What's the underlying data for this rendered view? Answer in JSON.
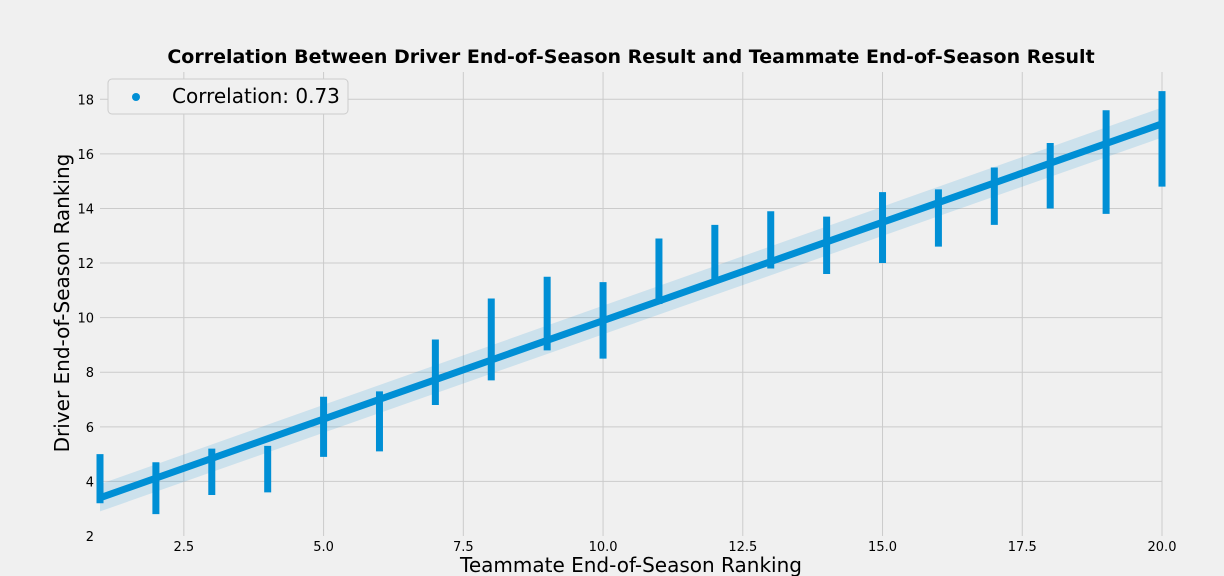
{
  "chart_data": {
    "type": "scatter",
    "title": "Correlation Between Driver End-of-Season Result and Teammate End-of-Season Result",
    "xlabel": "Teammate End-of-Season Ranking",
    "ylabel": "Driver End-of-Season Ranking",
    "xlim": [
      1,
      20
    ],
    "ylim": [
      2,
      19
    ],
    "x_ticks": [
      "2.5",
      "5.0",
      "7.5",
      "10.0",
      "12.5",
      "15.0",
      "17.5",
      "20.0"
    ],
    "x_tick_values": [
      2.5,
      5.0,
      7.5,
      10.0,
      12.5,
      15.0,
      17.5,
      20.0
    ],
    "y_ticks": [
      "2",
      "4",
      "6",
      "8",
      "10",
      "12",
      "14",
      "16",
      "18"
    ],
    "y_tick_values": [
      2,
      4,
      6,
      8,
      10,
      12,
      14,
      16,
      18
    ],
    "grid": true,
    "legend": {
      "label": "Correlation: 0.73",
      "placement": "top-left"
    },
    "color": "#008fd5",
    "series": [
      {
        "x_estimator_bars": [
          {
            "x": 1,
            "low": 3.2,
            "high": 5.0
          },
          {
            "x": 2,
            "low": 2.8,
            "high": 4.7
          },
          {
            "x": 3,
            "low": 3.5,
            "high": 5.2
          },
          {
            "x": 4,
            "low": 3.6,
            "high": 5.3
          },
          {
            "x": 5,
            "low": 4.9,
            "high": 7.1
          },
          {
            "x": 6,
            "low": 5.1,
            "high": 7.3
          },
          {
            "x": 7,
            "low": 6.8,
            "high": 9.2
          },
          {
            "x": 8,
            "low": 7.7,
            "high": 10.7
          },
          {
            "x": 9,
            "low": 8.8,
            "high": 11.5
          },
          {
            "x": 10,
            "low": 8.5,
            "high": 11.3
          },
          {
            "x": 11,
            "low": 10.5,
            "high": 12.9
          },
          {
            "x": 12,
            "low": 11.4,
            "high": 13.4
          },
          {
            "x": 13,
            "low": 11.8,
            "high": 13.9
          },
          {
            "x": 14,
            "low": 11.6,
            "high": 13.7
          },
          {
            "x": 15,
            "low": 12.0,
            "high": 14.6
          },
          {
            "x": 16,
            "low": 12.6,
            "high": 14.7
          },
          {
            "x": 17,
            "low": 13.4,
            "high": 15.5
          },
          {
            "x": 18,
            "low": 14.0,
            "high": 16.4
          },
          {
            "x": 19,
            "low": 13.8,
            "high": 17.6
          },
          {
            "x": 20,
            "low": 14.8,
            "high": 18.3
          }
        ]
      }
    ],
    "regression": {
      "x": [
        1,
        20
      ],
      "y": [
        3.4,
        17.1
      ],
      "ci_low": [
        2.9,
        16.6
      ],
      "ci_high": [
        3.9,
        17.7
      ]
    }
  }
}
